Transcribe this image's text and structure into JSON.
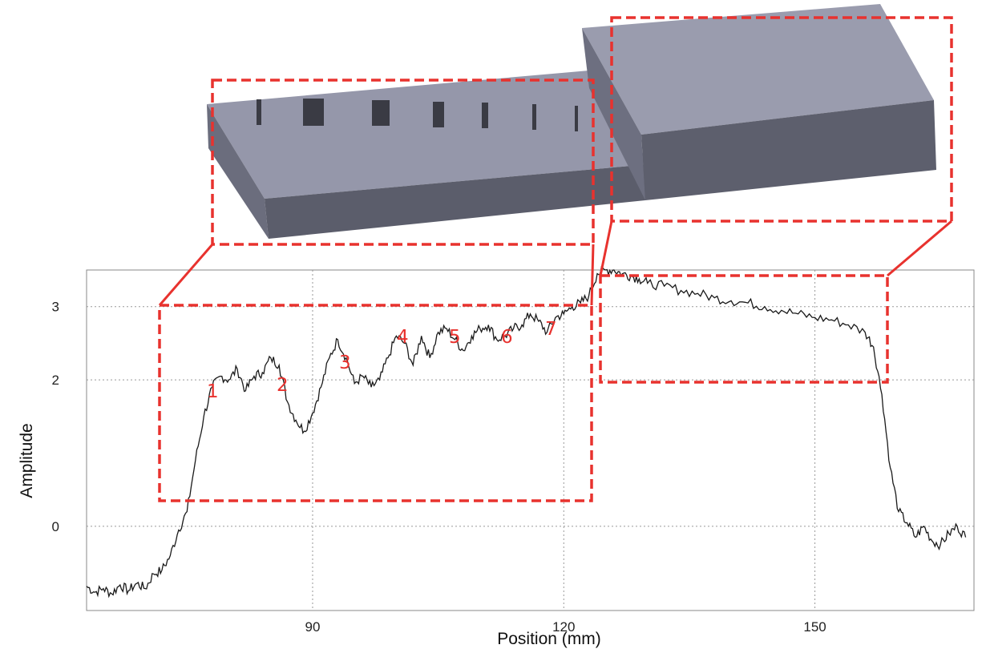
{
  "chart_data": {
    "type": "line",
    "xlabel": "Position (mm)",
    "ylabel": "Amplitude",
    "xlim": [
      63,
      169
    ],
    "ylim": [
      -1.15,
      3.5
    ],
    "x_ticks": [
      90,
      120,
      150
    ],
    "x_tick_labels": [
      "90",
      "120",
      "150"
    ],
    "y_ticks": [
      0,
      2,
      3
    ],
    "y_tick_labels": [
      "0",
      "2",
      "3"
    ],
    "grid": true,
    "series": [
      {
        "x": [
          63,
          64,
          65,
          66,
          67,
          68,
          69,
          70,
          71,
          72,
          73,
          74,
          75,
          76,
          77,
          78,
          79,
          80,
          81,
          82,
          83,
          84,
          85,
          86,
          87,
          88,
          89,
          90,
          91,
          92,
          93,
          94,
          95,
          96,
          97,
          98,
          99,
          100,
          101,
          102,
          103,
          104,
          105,
          106,
          107,
          108,
          109,
          110,
          111,
          112,
          113,
          114,
          115,
          116,
          117,
          118,
          119,
          120,
          121,
          122,
          123,
          124,
          125,
          126,
          127,
          128,
          129,
          130,
          132,
          134,
          136,
          138,
          140,
          142,
          144,
          146,
          148,
          150,
          152,
          154,
          156,
          157,
          158,
          159,
          160,
          161,
          162,
          163,
          164,
          165,
          166,
          167,
          168
        ],
        "y": [
          -0.82,
          -0.9,
          -0.85,
          -0.92,
          -0.8,
          -0.88,
          -0.78,
          -0.85,
          -0.65,
          -0.6,
          -0.4,
          -0.05,
          0.2,
          0.9,
          1.5,
          1.9,
          2.05,
          2.0,
          2.15,
          1.85,
          2.05,
          2.1,
          2.3,
          2.2,
          1.7,
          1.45,
          1.3,
          1.55,
          1.9,
          2.3,
          2.55,
          2.3,
          1.95,
          2.05,
          1.9,
          2.0,
          2.3,
          2.6,
          2.5,
          2.2,
          2.6,
          2.3,
          2.65,
          2.7,
          2.55,
          2.4,
          2.6,
          2.7,
          2.75,
          2.55,
          2.6,
          2.7,
          2.75,
          2.9,
          2.8,
          2.65,
          2.85,
          2.9,
          3.0,
          3.05,
          3.15,
          3.45,
          3.5,
          3.5,
          3.45,
          3.42,
          3.38,
          3.32,
          3.28,
          3.22,
          3.18,
          3.12,
          3.08,
          3.05,
          3.0,
          2.95,
          2.9,
          2.85,
          2.82,
          2.75,
          2.65,
          2.45,
          1.8,
          0.8,
          0.2,
          0.05,
          -0.15,
          0.0,
          -0.2,
          -0.25,
          -0.1,
          0.0,
          -0.15
        ]
      }
    ],
    "annotations": [
      "1",
      "2",
      "3",
      "4",
      "5",
      "6",
      "7"
    ],
    "annotation_color": "#e8322e",
    "line_color": "#1a1a1a",
    "block_top_color": "#9597aa",
    "block_side_color": "#5e6070"
  }
}
